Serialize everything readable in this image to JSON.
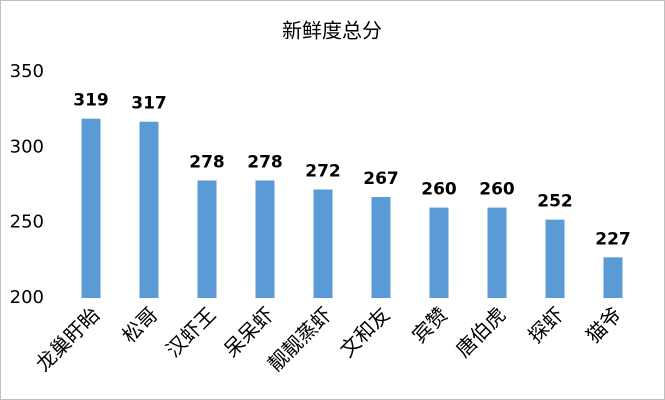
{
  "chart_data": {
    "type": "bar",
    "title": "新鲜度总分",
    "categories": [
      "龙巢盱眙",
      "松哥",
      "汉虾王",
      "呆呆虾",
      "靓靓蒸虾",
      "文和友",
      "宾赞",
      "唐伯虎",
      "探虾",
      "猫爷"
    ],
    "values": [
      319,
      317,
      278,
      278,
      272,
      267,
      260,
      260,
      252,
      227
    ],
    "color": "#5b9bd5",
    "ylim": [
      200,
      350
    ],
    "yticks": [
      200,
      250,
      300,
      350
    ],
    "grid": false
  }
}
